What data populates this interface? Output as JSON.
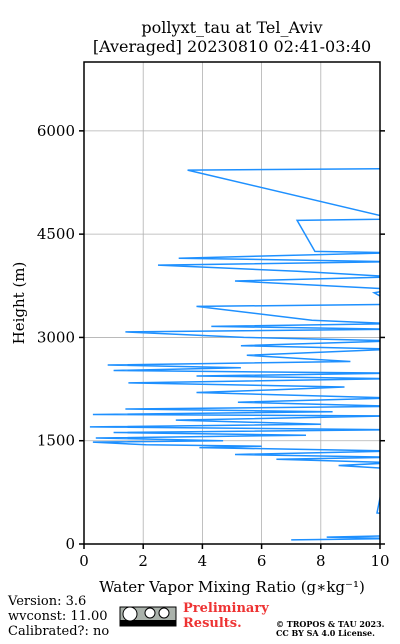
{
  "chart_data": {
    "type": "line",
    "title": "pollyxt_tau at Tel_Aviv",
    "subtitle": "[Averaged] 20230810 02:41-03:40",
    "x_label": "Water Vapor Mixing Ratio (g∗kg⁻¹)",
    "y_label": "Height (m)",
    "xlim": [
      0,
      10
    ],
    "xticks": [
      0,
      2,
      4,
      6,
      8,
      10
    ],
    "ylim": [
      0,
      7000
    ],
    "yticks": [
      0,
      1500,
      3000,
      4500,
      6000
    ],
    "grid": true,
    "series": [
      {
        "color": "#1e90ff",
        "x": [
          7.0,
          10.5,
          8.2,
          10.5,
          10.5,
          9.9,
          10.2,
          8.6,
          10.5,
          6.5,
          10.5,
          5.1,
          10.5,
          3.9,
          6.0,
          2.1,
          0.3,
          4.7,
          0.4,
          7.5,
          1.0,
          10.5,
          0.2,
          8.0,
          3.1,
          10.5,
          0.3,
          8.4,
          1.4,
          10.5,
          5.2,
          10.5,
          3.8,
          6.5,
          8.8,
          1.5,
          10.5,
          3.8,
          10.5,
          1.0,
          5.3,
          0.8,
          9.0,
          5.5,
          10.5,
          5.3,
          10.5,
          5.4,
          1.4,
          10.5,
          4.3,
          10.5,
          7.7,
          3.8,
          10.5,
          9.8,
          10.5,
          5.1,
          10.5,
          7.2,
          2.5,
          10.5,
          3.2,
          10.5,
          7.8,
          7.2,
          10.5,
          3.5,
          10.5
        ],
        "y": [
          60,
          80,
          100,
          120,
          430,
          450,
          1100,
          1140,
          1180,
          1230,
          1260,
          1300,
          1350,
          1400,
          1420,
          1440,
          1480,
          1500,
          1540,
          1580,
          1620,
          1660,
          1700,
          1740,
          1800,
          1860,
          1880,
          1920,
          1960,
          2000,
          2060,
          2120,
          2200,
          2240,
          2280,
          2340,
          2400,
          2440,
          2480,
          2520,
          2560,
          2600,
          2650,
          2740,
          2830,
          2880,
          2950,
          3000,
          3080,
          3120,
          3160,
          3200,
          3250,
          3450,
          3480,
          3650,
          3700,
          3820,
          3880,
          3960,
          4050,
          4100,
          4150,
          4230,
          4250,
          4700,
          4720,
          5430,
          5450
        ]
      }
    ]
  },
  "footer": {
    "version": "Version: 3.6",
    "wvconst": "wvconst:  11.00",
    "calibrated": "Calibrated?: no",
    "status": "Preliminary Results.",
    "copyright": "© TROPOS & TAU 2023.",
    "license": "CC BY SA 4.0 License."
  }
}
